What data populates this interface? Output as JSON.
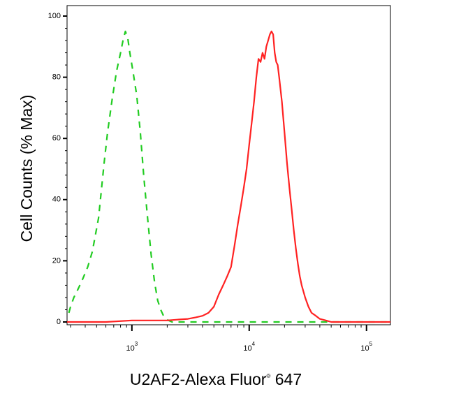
{
  "chart_data": {
    "type": "line",
    "title": "",
    "xlabel": {
      "text": "U2AF2-Alexa Fluor",
      "superscript": "®",
      "suffix": " 647"
    },
    "ylabel": "Cell Counts (% Max)",
    "x_scale": "log",
    "xlim": [
      280,
      160000
    ],
    "ylim": [
      0,
      100
    ],
    "x_ticks": [
      {
        "base": "10",
        "exp": "3",
        "value": 1000
      },
      {
        "base": "10",
        "exp": "4",
        "value": 10000
      },
      {
        "base": "10",
        "exp": "5",
        "value": 100000
      }
    ],
    "y_ticks": [
      {
        "label": "0",
        "value": 0
      },
      {
        "label": "20",
        "value": 20
      },
      {
        "label": "40",
        "value": 40
      },
      {
        "label": "60",
        "value": 60
      },
      {
        "label": "80",
        "value": 80
      },
      {
        "label": "100",
        "value": 100
      }
    ],
    "grid": false,
    "legend": "none",
    "series": [
      {
        "color": "#22cc22",
        "style": "dashed",
        "x": [
          290,
          300,
          320,
          350,
          380,
          420,
          460,
          520,
          580,
          620,
          680,
          740,
          800,
          840,
          880,
          920,
          960,
          1020,
          1100,
          1180,
          1260,
          1360,
          1460,
          1560,
          1660,
          1760,
          1860,
          1950,
          2050,
          2200,
          2400,
          2700,
          3000,
          4000,
          6000,
          10000,
          20000,
          50000,
          100000,
          160000
        ],
        "y": [
          3,
          5,
          8,
          11,
          14,
          18,
          23,
          34,
          52,
          62,
          73,
          82,
          88,
          92,
          95,
          93,
          88,
          82,
          74,
          62,
          48,
          34,
          22,
          13,
          7,
          4,
          2,
          1,
          0.5,
          0,
          0,
          0,
          0,
          0,
          0,
          0,
          0,
          0,
          0,
          0
        ]
      },
      {
        "color": "#ff2222",
        "style": "solid",
        "x": [
          280,
          600,
          1000,
          1500,
          2000,
          2500,
          3000,
          3500,
          4000,
          4500,
          5000,
          5500,
          6000,
          6500,
          7000,
          7500,
          8000,
          8500,
          9000,
          9500,
          10000,
          10500,
          11000,
          11500,
          12000,
          12500,
          13000,
          13500,
          14000,
          14500,
          15000,
          15500,
          16000,
          16500,
          17000,
          17500,
          18000,
          19000,
          20000,
          21000,
          22000,
          23000,
          24000,
          25000,
          26000,
          27000,
          28000,
          30000,
          32000,
          34000,
          37000,
          40000,
          45000,
          50000,
          60000,
          70000,
          100000,
          160000
        ],
        "y": [
          0,
          0,
          0.5,
          0.5,
          0.5,
          0.8,
          1,
          1.5,
          2,
          3,
          5,
          9,
          12,
          15,
          18,
          25,
          32,
          38,
          44,
          50,
          58,
          65,
          72,
          80,
          86,
          85,
          88,
          86,
          90,
          92,
          94,
          95,
          94,
          88,
          85,
          84,
          80,
          72,
          62,
          52,
          44,
          37,
          30,
          24,
          19,
          15,
          12,
          8,
          5,
          3,
          2,
          1,
          0.5,
          0,
          0,
          0,
          0,
          0
        ]
      }
    ]
  }
}
